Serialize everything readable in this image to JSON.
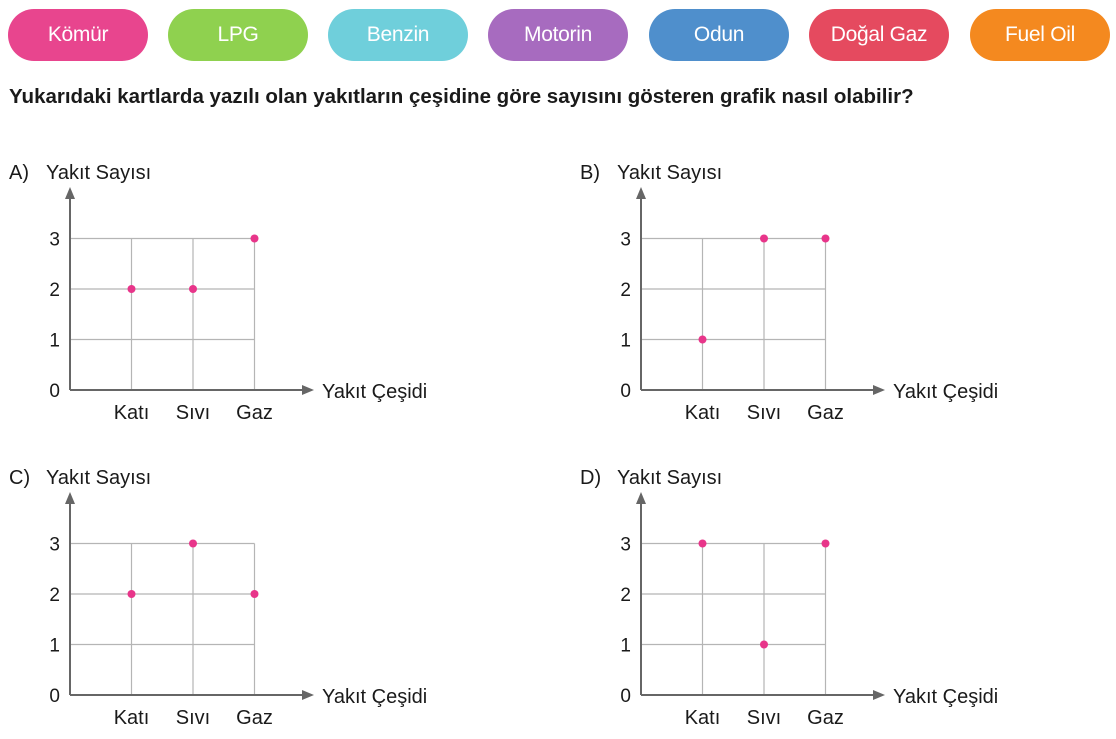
{
  "cards": [
    {
      "label": "Kömür",
      "color": "#e8458e"
    },
    {
      "label": "LPG",
      "color": "#8fd14f"
    },
    {
      "label": "Benzin",
      "color": "#6fcfdb"
    },
    {
      "label": "Motorin",
      "color": "#a76bbf"
    },
    {
      "label": "Odun",
      "color": "#4f8fcc"
    },
    {
      "label": "Doğal Gaz",
      "color": "#e54a5f"
    },
    {
      "label": "Fuel Oil",
      "color": "#f4891f"
    }
  ],
  "question": "Yukarıdaki kartlarda yazılı olan yakıtların çeşidine göre sayısını gösteren grafik nasıl olabilir?",
  "colors": {
    "point": "#e8358a",
    "grid": "#b5b5b5",
    "axis": "#666666"
  },
  "chart_data": [
    {
      "type": "scatter",
      "option": "A)",
      "ylabel": "Yakıt Sayısı",
      "xlabel": "Yakıt Çeşidi",
      "categories": [
        "Katı",
        "Sıvı",
        "Gaz"
      ],
      "values": [
        2,
        2,
        3
      ],
      "yticks": [
        "0",
        "1",
        "2",
        "3"
      ],
      "ylim": [
        0,
        3
      ],
      "grid": true
    },
    {
      "type": "scatter",
      "option": "B)",
      "ylabel": "Yakıt Sayısı",
      "xlabel": "Yakıt Çeşidi",
      "categories": [
        "Katı",
        "Sıvı",
        "Gaz"
      ],
      "values": [
        1,
        3,
        3
      ],
      "yticks": [
        "0",
        "1",
        "2",
        "3"
      ],
      "ylim": [
        0,
        3
      ],
      "grid": true
    },
    {
      "type": "scatter",
      "option": "C)",
      "ylabel": "Yakıt Sayısı",
      "xlabel": "Yakıt Çeşidi",
      "categories": [
        "Katı",
        "Sıvı",
        "Gaz"
      ],
      "values": [
        2,
        3,
        2
      ],
      "yticks": [
        "0",
        "1",
        "2",
        "3"
      ],
      "ylim": [
        0,
        3
      ],
      "grid": true
    },
    {
      "type": "scatter",
      "option": "D)",
      "ylabel": "Yakıt Sayısı",
      "xlabel": "Yakıt Çeşidi",
      "categories": [
        "Katı",
        "Sıvı",
        "Gaz"
      ],
      "values": [
        3,
        1,
        3
      ],
      "yticks": [
        "0",
        "1",
        "2",
        "3"
      ],
      "ylim": [
        0,
        3
      ],
      "grid": true
    }
  ]
}
